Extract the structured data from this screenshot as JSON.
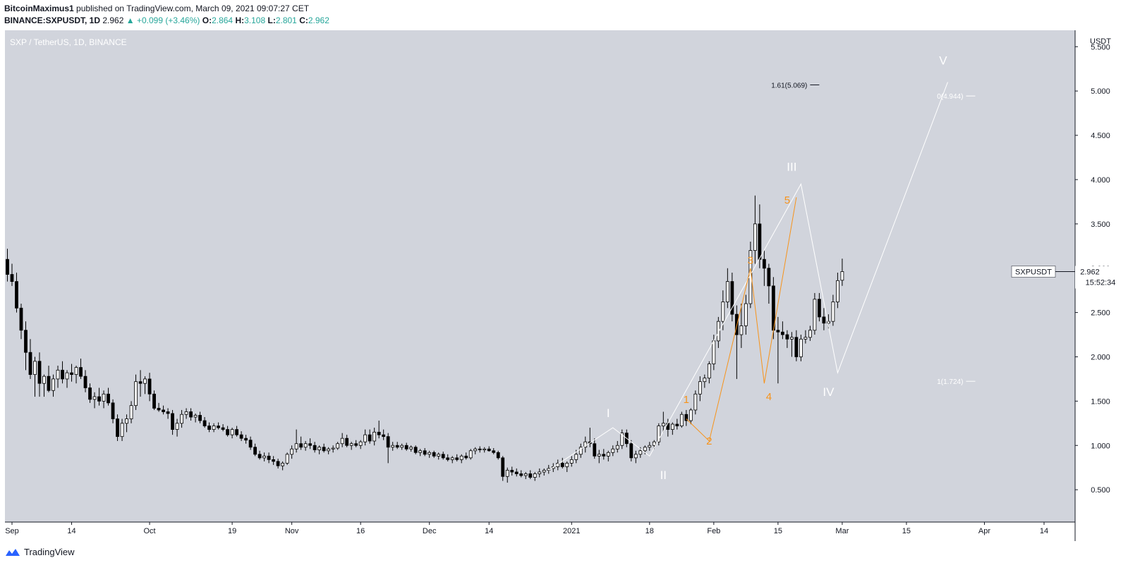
{
  "header": {
    "author": "BitcoinMaximus1",
    "published_text": "published on TradingView.com, March 09, 2021 09:07:27 CET",
    "symbol": "BINANCE:SXPUSDT, 1D",
    "last": "2.962",
    "change_arrow": "▲",
    "change": "+0.099 (+3.46%)",
    "o_label": "O:",
    "o_value": "2.864",
    "h_label": "H:",
    "h_value": "3.108",
    "l_label": "L:",
    "l_value": "2.801",
    "c_label": "C:",
    "c_value": "2.962"
  },
  "footer": {
    "brand": "TradingView"
  },
  "colors": {
    "pane_bg": "#d1d4dc",
    "axis_bg": "#ffffff",
    "bull_body": "#ffffff",
    "bear_body": "#000000",
    "wave_white": "#ffffff",
    "wave_orange": "#f7931a",
    "fib_text": "#ffffff",
    "fib_text_dark": "#131722"
  },
  "chart_data": {
    "type": "candlestick",
    "title": "SXP / TetherUS, 1D, BINANCE",
    "ylabel": "USDT",
    "ylim": [
      0.0,
      5.7
    ],
    "y_ticks": [
      "0.500",
      "1.000",
      "1.500",
      "2.000",
      "2.500",
      "3.000",
      "3.500",
      "4.000",
      "4.500",
      "5.000",
      "5.500"
    ],
    "x_ticks": [
      {
        "label": "Sep",
        "day": 0
      },
      {
        "label": "14",
        "day": 13
      },
      {
        "label": "Oct",
        "day": 30
      },
      {
        "label": "19",
        "day": 48
      },
      {
        "label": "Nov",
        "day": 61
      },
      {
        "label": "16",
        "day": 76
      },
      {
        "label": "Dec",
        "day": 91
      },
      {
        "label": "14",
        "day": 104
      },
      {
        "label": "2021",
        "day": 122
      },
      {
        "label": "18",
        "day": 139
      },
      {
        "label": "Feb",
        "day": 153
      },
      {
        "label": "15",
        "day": 167
      },
      {
        "label": "Mar",
        "day": 181
      },
      {
        "label": "15",
        "day": 195
      },
      {
        "label": "Apr",
        "day": 212
      },
      {
        "label": "14",
        "day": 225
      }
    ],
    "day_range": [
      0,
      228
    ],
    "candles_start_day": -1,
    "candles": [
      [
        3.1,
        3.22,
        2.85,
        2.93
      ],
      [
        2.93,
        3.05,
        2.8,
        2.85
      ],
      [
        2.85,
        2.95,
        2.5,
        2.55
      ],
      [
        2.55,
        2.6,
        2.2,
        2.3
      ],
      [
        2.3,
        2.4,
        1.85,
        2.05
      ],
      [
        2.05,
        2.2,
        1.75,
        1.8
      ],
      [
        1.8,
        2.0,
        1.55,
        1.95
      ],
      [
        1.95,
        2.05,
        1.55,
        1.7
      ],
      [
        1.7,
        1.8,
        1.55,
        1.78
      ],
      [
        1.78,
        1.9,
        1.6,
        1.62
      ],
      [
        1.62,
        1.8,
        1.55,
        1.75
      ],
      [
        1.75,
        1.9,
        1.65,
        1.85
      ],
      [
        1.85,
        1.95,
        1.7,
        1.75
      ],
      [
        1.75,
        1.85,
        1.65,
        1.82
      ],
      [
        1.82,
        1.92,
        1.72,
        1.8
      ],
      [
        1.8,
        1.9,
        1.7,
        1.88
      ],
      [
        1.88,
        1.98,
        1.75,
        1.78
      ],
      [
        1.78,
        1.85,
        1.6,
        1.65
      ],
      [
        1.65,
        1.7,
        1.48,
        1.52
      ],
      [
        1.52,
        1.6,
        1.42,
        1.55
      ],
      [
        1.55,
        1.65,
        1.45,
        1.5
      ],
      [
        1.5,
        1.62,
        1.42,
        1.58
      ],
      [
        1.58,
        1.65,
        1.45,
        1.48
      ],
      [
        1.48,
        1.52,
        1.25,
        1.3
      ],
      [
        1.3,
        1.35,
        1.05,
        1.1
      ],
      [
        1.1,
        1.3,
        1.05,
        1.25
      ],
      [
        1.25,
        1.35,
        1.15,
        1.3
      ],
      [
        1.3,
        1.5,
        1.25,
        1.45
      ],
      [
        1.45,
        1.8,
        1.4,
        1.72
      ],
      [
        1.72,
        1.85,
        1.55,
        1.7
      ],
      [
        1.7,
        1.78,
        1.58,
        1.75
      ],
      [
        1.75,
        1.82,
        1.5,
        1.58
      ],
      [
        1.58,
        1.62,
        1.4,
        1.42
      ],
      [
        1.42,
        1.48,
        1.38,
        1.4
      ],
      [
        1.4,
        1.45,
        1.35,
        1.38
      ],
      [
        1.38,
        1.42,
        1.3,
        1.36
      ],
      [
        1.36,
        1.4,
        1.12,
        1.18
      ],
      [
        1.18,
        1.3,
        1.1,
        1.25
      ],
      [
        1.25,
        1.4,
        1.2,
        1.35
      ],
      [
        1.35,
        1.42,
        1.3,
        1.38
      ],
      [
        1.38,
        1.42,
        1.28,
        1.32
      ],
      [
        1.32,
        1.36,
        1.26,
        1.34
      ],
      [
        1.34,
        1.38,
        1.25,
        1.28
      ],
      [
        1.28,
        1.32,
        1.2,
        1.22
      ],
      [
        1.22,
        1.26,
        1.15,
        1.18
      ],
      [
        1.18,
        1.25,
        1.15,
        1.22
      ],
      [
        1.22,
        1.26,
        1.18,
        1.2
      ],
      [
        1.2,
        1.24,
        1.16,
        1.18
      ],
      [
        1.18,
        1.22,
        1.1,
        1.12
      ],
      [
        1.12,
        1.2,
        1.08,
        1.18
      ],
      [
        1.18,
        1.22,
        1.1,
        1.12
      ],
      [
        1.12,
        1.16,
        1.05,
        1.08
      ],
      [
        1.08,
        1.12,
        1.02,
        1.06
      ],
      [
        1.06,
        1.1,
        0.95,
        0.98
      ],
      [
        0.98,
        1.02,
        0.88,
        0.9
      ],
      [
        0.9,
        0.94,
        0.84,
        0.86
      ],
      [
        0.86,
        0.92,
        0.82,
        0.88
      ],
      [
        0.88,
        0.92,
        0.8,
        0.84
      ],
      [
        0.84,
        0.88,
        0.78,
        0.82
      ],
      [
        0.82,
        0.85,
        0.74,
        0.77
      ],
      [
        0.77,
        0.82,
        0.72,
        0.8
      ],
      [
        0.8,
        0.92,
        0.78,
        0.9
      ],
      [
        0.9,
        1.0,
        0.85,
        0.96
      ],
      [
        0.96,
        1.18,
        0.92,
        1.02
      ],
      [
        1.02,
        1.1,
        0.95,
        0.98
      ],
      [
        0.98,
        1.05,
        0.94,
        1.02
      ],
      [
        1.02,
        1.08,
        0.96,
        1.0
      ],
      [
        1.0,
        1.04,
        0.92,
        0.95
      ],
      [
        0.95,
        1.0,
        0.9,
        0.98
      ],
      [
        0.98,
        1.02,
        0.92,
        0.94
      ],
      [
        0.94,
        0.98,
        0.9,
        0.96
      ],
      [
        0.96,
        1.0,
        0.92,
        0.97
      ],
      [
        0.97,
        1.04,
        0.95,
        1.02
      ],
      [
        1.02,
        1.14,
        0.98,
        1.08
      ],
      [
        1.08,
        1.12,
        0.98,
        1.0
      ],
      [
        1.0,
        1.04,
        0.95,
        1.02
      ],
      [
        1.02,
        1.06,
        0.98,
        1.0
      ],
      [
        1.0,
        1.06,
        0.96,
        1.04
      ],
      [
        1.04,
        1.18,
        1.0,
        1.12
      ],
      [
        1.12,
        1.18,
        1.02,
        1.05
      ],
      [
        1.05,
        1.2,
        1.0,
        1.15
      ],
      [
        1.15,
        1.28,
        1.08,
        1.12
      ],
      [
        1.12,
        1.18,
        1.06,
        1.1
      ],
      [
        1.1,
        1.14,
        0.8,
        0.98
      ],
      [
        0.98,
        1.04,
        0.94,
        1.0
      ],
      [
        1.0,
        1.04,
        0.96,
        0.98
      ],
      [
        0.98,
        1.02,
        0.95,
        1.0
      ],
      [
        1.0,
        1.03,
        0.94,
        0.96
      ],
      [
        0.96,
        1.0,
        0.93,
        0.98
      ],
      [
        0.98,
        1.0,
        0.9,
        0.92
      ],
      [
        0.92,
        0.96,
        0.88,
        0.94
      ],
      [
        0.94,
        0.97,
        0.88,
        0.9
      ],
      [
        0.9,
        0.94,
        0.86,
        0.92
      ],
      [
        0.92,
        0.94,
        0.86,
        0.88
      ],
      [
        0.88,
        0.92,
        0.84,
        0.9
      ],
      [
        0.9,
        0.93,
        0.84,
        0.86
      ],
      [
        0.86,
        0.9,
        0.82,
        0.84
      ],
      [
        0.84,
        0.88,
        0.8,
        0.86
      ],
      [
        0.86,
        0.9,
        0.82,
        0.84
      ],
      [
        0.84,
        0.9,
        0.8,
        0.88
      ],
      [
        0.88,
        0.92,
        0.84,
        0.86
      ],
      [
        0.86,
        0.96,
        0.84,
        0.94
      ],
      [
        0.94,
        0.98,
        0.9,
        0.96
      ],
      [
        0.96,
        0.99,
        0.92,
        0.95
      ],
      [
        0.95,
        0.98,
        0.92,
        0.96
      ],
      [
        0.96,
        0.99,
        0.93,
        0.94
      ],
      [
        0.94,
        0.97,
        0.9,
        0.92
      ],
      [
        0.92,
        0.94,
        0.84,
        0.86
      ],
      [
        0.86,
        0.88,
        0.6,
        0.65
      ],
      [
        0.65,
        0.75,
        0.58,
        0.72
      ],
      [
        0.72,
        0.76,
        0.66,
        0.7
      ],
      [
        0.7,
        0.74,
        0.65,
        0.68
      ],
      [
        0.68,
        0.72,
        0.64,
        0.66
      ],
      [
        0.66,
        0.7,
        0.62,
        0.68
      ],
      [
        0.68,
        0.72,
        0.62,
        0.64
      ],
      [
        0.64,
        0.7,
        0.6,
        0.68
      ],
      [
        0.68,
        0.74,
        0.64,
        0.7
      ],
      [
        0.7,
        0.74,
        0.66,
        0.72
      ],
      [
        0.72,
        0.78,
        0.68,
        0.74
      ],
      [
        0.74,
        0.8,
        0.7,
        0.76
      ],
      [
        0.76,
        0.84,
        0.72,
        0.8
      ],
      [
        0.8,
        0.86,
        0.74,
        0.76
      ],
      [
        0.76,
        0.82,
        0.7,
        0.8
      ],
      [
        0.8,
        0.88,
        0.76,
        0.84
      ],
      [
        0.84,
        0.95,
        0.8,
        0.9
      ],
      [
        0.9,
        1.02,
        0.86,
        0.98
      ],
      [
        0.98,
        1.1,
        0.92,
        1.04
      ],
      [
        1.04,
        1.2,
        0.98,
        1.02
      ],
      [
        1.02,
        1.08,
        0.85,
        0.88
      ],
      [
        0.88,
        0.95,
        0.8,
        0.9
      ],
      [
        0.9,
        0.96,
        0.84,
        0.88
      ],
      [
        0.88,
        0.94,
        0.82,
        0.92
      ],
      [
        0.92,
        1.0,
        0.88,
        0.96
      ],
      [
        0.96,
        1.05,
        0.92,
        1.0
      ],
      [
        1.0,
        1.18,
        0.96,
        1.14
      ],
      [
        1.14,
        1.18,
        0.98,
        1.02
      ],
      [
        1.02,
        1.06,
        0.82,
        0.86
      ],
      [
        0.86,
        0.94,
        0.8,
        0.9
      ],
      [
        0.9,
        0.98,
        0.86,
        0.94
      ],
      [
        0.94,
        1.0,
        0.9,
        0.98
      ],
      [
        0.98,
        1.04,
        0.94,
        1.0
      ],
      [
        1.0,
        1.06,
        0.96,
        1.04
      ],
      [
        1.04,
        1.25,
        1.0,
        1.22
      ],
      [
        1.22,
        1.38,
        1.15,
        1.25
      ],
      [
        1.25,
        1.3,
        1.1,
        1.18
      ],
      [
        1.18,
        1.26,
        1.12,
        1.24
      ],
      [
        1.24,
        1.3,
        1.18,
        1.22
      ],
      [
        1.22,
        1.38,
        1.2,
        1.35
      ],
      [
        1.35,
        1.4,
        1.22,
        1.28
      ],
      [
        1.28,
        1.42,
        1.24,
        1.4
      ],
      [
        1.4,
        1.62,
        1.35,
        1.58
      ],
      [
        1.58,
        1.78,
        1.5,
        1.72
      ],
      [
        1.72,
        1.8,
        1.65,
        1.76
      ],
      [
        1.76,
        1.95,
        1.7,
        1.92
      ],
      [
        1.92,
        2.25,
        1.85,
        2.18
      ],
      [
        2.18,
        2.45,
        2.1,
        2.4
      ],
      [
        2.4,
        2.75,
        2.3,
        2.62
      ],
      [
        2.62,
        3.0,
        2.55,
        2.85
      ],
      [
        2.85,
        2.95,
        2.4,
        2.48
      ],
      [
        2.48,
        2.58,
        1.75,
        2.25
      ],
      [
        2.25,
        2.6,
        2.1,
        2.35
      ],
      [
        2.35,
        2.7,
        2.25,
        2.6
      ],
      [
        2.6,
        3.3,
        2.55,
        3.2
      ],
      [
        3.2,
        3.82,
        3.05,
        3.5
      ],
      [
        3.5,
        3.72,
        3.0,
        3.1
      ],
      [
        3.1,
        3.2,
        2.8,
        3.0
      ],
      [
        3.0,
        3.05,
        2.6,
        2.8
      ],
      [
        2.8,
        2.9,
        2.2,
        2.3
      ],
      [
        2.3,
        2.45,
        1.7,
        2.28
      ],
      [
        2.28,
        2.4,
        2.2,
        2.25
      ],
      [
        2.25,
        2.3,
        2.1,
        2.2
      ],
      [
        2.2,
        2.28,
        2.0,
        2.22
      ],
      [
        2.22,
        2.3,
        1.95,
        2.0
      ],
      [
        2.0,
        2.25,
        1.95,
        2.2
      ],
      [
        2.2,
        2.3,
        2.15,
        2.22
      ],
      [
        2.22,
        2.35,
        2.18,
        2.3
      ],
      [
        2.3,
        2.72,
        2.25,
        2.65
      ],
      [
        2.65,
        2.72,
        2.4,
        2.45
      ],
      [
        2.45,
        2.55,
        2.3,
        2.38
      ],
      [
        2.38,
        2.48,
        2.32,
        2.4
      ],
      [
        2.4,
        2.7,
        2.35,
        2.62
      ],
      [
        2.62,
        2.95,
        2.55,
        2.86
      ],
      [
        2.864,
        3.108,
        2.801,
        2.962
      ]
    ],
    "wave_lines": [
      {
        "color": "wave_white",
        "points": [
          [
            117,
            0.72
          ],
          [
            131,
            1.2
          ],
          [
            139,
            0.88
          ],
          [
            172,
            3.95
          ],
          [
            180,
            1.82
          ],
          [
            204,
            5.1
          ]
        ]
      },
      {
        "color": "wave_orange",
        "points": [
          [
            147,
            1.3
          ],
          [
            152,
            1.05
          ],
          [
            161,
            3.0
          ],
          [
            164,
            1.7
          ],
          [
            171,
            3.8
          ]
        ]
      }
    ],
    "wave_labels": [
      {
        "text": "I",
        "day": 130,
        "price": 1.32,
        "color": "wave_white",
        "size": 17
      },
      {
        "text": "II",
        "day": 142,
        "price": 0.62,
        "color": "wave_white",
        "size": 17
      },
      {
        "text": "III",
        "day": 170,
        "price": 4.1,
        "color": "wave_white",
        "size": 17
      },
      {
        "text": "IV",
        "day": 178,
        "price": 1.56,
        "color": "wave_white",
        "size": 17
      },
      {
        "text": "V",
        "day": 203,
        "price": 5.3,
        "color": "wave_white",
        "size": 17
      },
      {
        "text": "1",
        "day": 147,
        "price": 1.48,
        "color": "wave_orange",
        "size": 15
      },
      {
        "text": "2",
        "day": 152,
        "price": 1.01,
        "color": "wave_orange",
        "size": 15
      },
      {
        "text": "3",
        "day": 161,
        "price": 3.05,
        "color": "wave_orange",
        "size": 15
      },
      {
        "text": "4",
        "day": 165,
        "price": 1.51,
        "color": "wave_orange",
        "size": 15
      },
      {
        "text": "5",
        "day": 169,
        "price": 3.73,
        "color": "wave_orange",
        "size": 15
      }
    ],
    "fib_levels": [
      {
        "label": "1.61(5.069)",
        "price": 5.069,
        "day_from": 174,
        "day_to": 176,
        "text_color": "fib_text_dark"
      },
      {
        "label": "0(4.944)",
        "price": 4.944,
        "day_from": 208,
        "day_to": 210,
        "text_color": "fib_text"
      },
      {
        "label": "1(1.724)",
        "price": 1.724,
        "day_from": 208,
        "day_to": 210,
        "text_color": "fib_text"
      }
    ],
    "price_tag": {
      "symbol": "SXPUSDT",
      "value": "2.962",
      "countdown": "15:52:34",
      "price": 2.962
    }
  }
}
